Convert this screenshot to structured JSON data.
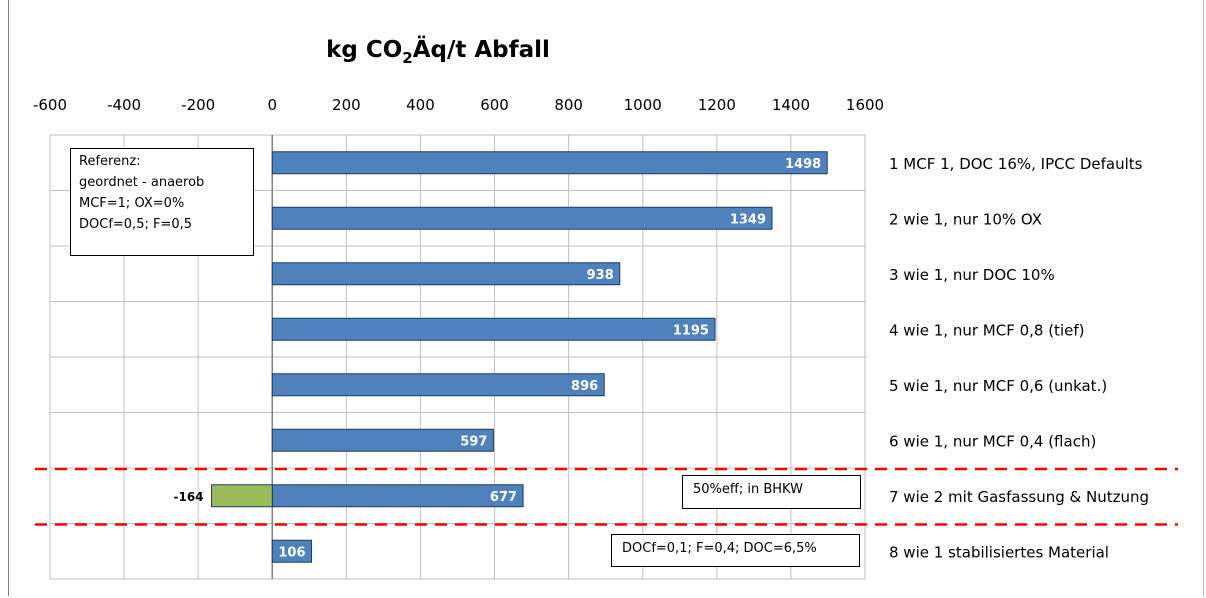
{
  "chart_data": {
    "type": "bar",
    "title_main": "kg CO",
    "title_sub": "2",
    "title_rest": "Äq/t Abfall",
    "xlim": [
      -600,
      1600
    ],
    "xticks": [
      "-600",
      "-400",
      "-200",
      "0",
      "200",
      "400",
      "600",
      "800",
      "1000",
      "1200",
      "1400",
      "1600"
    ],
    "grid": true,
    "categories": [
      "1 MCF 1, DOC 16%, IPCC Defaults",
      "2 wie 1, nur 10% OX",
      "3 wie 1, nur DOC 10%",
      "4 wie 1, nur MCF 0,8 (tief)",
      "5 wie 1, nur MCF 0,6 (unkat.)",
      "6 wie 1, nur MCF 0,4 (flach)",
      "7 wie 2  mit Gasfassung & Nutzung",
      "8 wie 1  stabilisiertes Material"
    ],
    "series": [
      {
        "values": [
          1498,
          1349,
          938,
          1195,
          896,
          597,
          677,
          106
        ],
        "color": "#4f81bd",
        "labels": [
          "1498",
          "1349",
          "938",
          "1195",
          "896",
          "597",
          "677",
          "106"
        ]
      },
      {
        "values": [
          null,
          null,
          null,
          null,
          null,
          null,
          -164,
          null
        ],
        "color": "#9bbb59",
        "labels": [
          "",
          "",
          "",
          "",
          "",
          "",
          "-164",
          ""
        ]
      }
    ],
    "separator_color": "#ff0000"
  },
  "notes": {
    "reference": [
      "Referenz:",
      "geordnet - anaerob",
      "MCF=1; OX=0%",
      "DOCf=0,5; F=0,5"
    ],
    "row7": "50%eff; in BHKW",
    "row8": "DOCf=0,1; F=0,4; DOC=6,5%"
  }
}
